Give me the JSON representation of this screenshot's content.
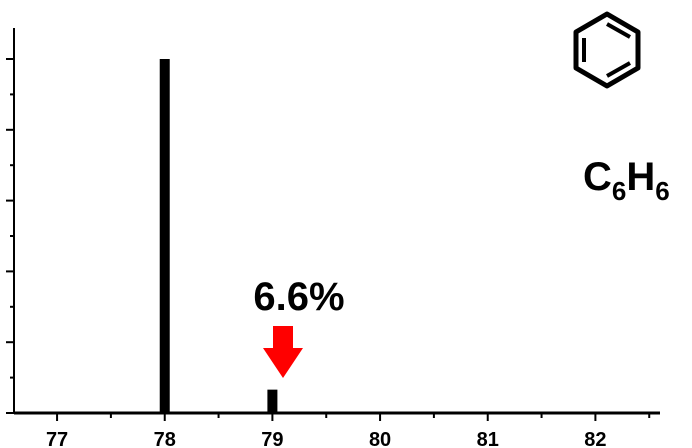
{
  "chart_data": {
    "type": "bar",
    "x": [
      77,
      78,
      79,
      80,
      81,
      82
    ],
    "xticks": [
      "77",
      "78",
      "79",
      "80",
      "81",
      "82"
    ],
    "bars": [
      {
        "x": 78,
        "value": 100
      },
      {
        "x": 79,
        "value": 6.6
      }
    ],
    "xlim": [
      76.6,
      82.6
    ],
    "ylim": [
      0,
      100
    ],
    "annotation": {
      "text": "6.6%",
      "target_x": 79,
      "arrow_color": "#ff0000"
    },
    "molecule": {
      "formula_main1": "C",
      "formula_sub1": "6",
      "formula_main2": "H",
      "formula_sub2": "6",
      "structure": "benzene-ring-icon"
    },
    "bar_color": "#000000",
    "axis_color": "#000000"
  }
}
